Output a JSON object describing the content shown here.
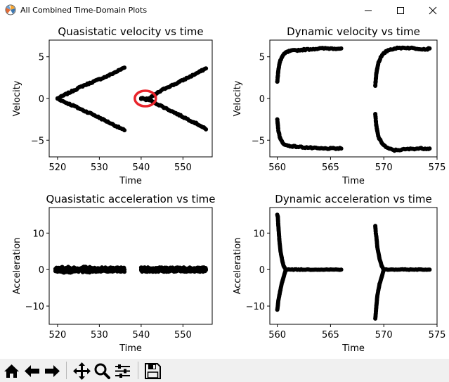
{
  "window": {
    "title": "All Combined Time-Domain Plots",
    "icon": "matplotlib-icon",
    "controls": [
      "minimize-icon",
      "maximize-icon",
      "close-icon"
    ]
  },
  "toolbar": {
    "buttons": [
      "home-icon",
      "back-icon",
      "forward-icon",
      "pan-icon",
      "zoom-icon",
      "configure-subplots-icon",
      "save-icon"
    ]
  },
  "colors": {
    "points": "#000000",
    "highlight_circle": "#e8232a",
    "toolbar_bg": "#f0f0f0"
  },
  "chart_data": [
    {
      "type": "scatter",
      "title": "Quasistatic velocity vs time",
      "xlabel": "Time",
      "ylabel": "Velocity",
      "xlim": [
        518,
        557
      ],
      "ylim": [
        -7,
        7
      ],
      "xticks": [
        520,
        530,
        540,
        550
      ],
      "yticks": [
        5,
        0,
        -5
      ],
      "annotation": "red circle around point (541, 0)",
      "series": [
        {
          "values": [
            [
              520,
              0
            ],
            [
              522,
              0.5
            ],
            [
              524,
              1.0
            ],
            [
              526,
              1.5
            ],
            [
              528,
              1.9
            ],
            [
              530,
              2.3
            ],
            [
              532,
              2.7
            ],
            [
              534,
              3.2
            ],
            [
              536,
              3.7
            ]
          ]
        },
        {
          "values": [
            [
              520,
              0
            ],
            [
              522,
              -0.5
            ],
            [
              524,
              -0.9
            ],
            [
              526,
              -1.4
            ],
            [
              528,
              -1.8
            ],
            [
              530,
              -2.3
            ],
            [
              532,
              -2.8
            ],
            [
              534,
              -3.3
            ],
            [
              536,
              -3.8
            ]
          ]
        },
        {
          "values": [
            [
              540,
              0
            ],
            [
              542,
              0.0
            ],
            [
              544,
              0.7
            ],
            [
              546,
              1.3
            ],
            [
              548,
              1.7
            ],
            [
              550,
              2.2
            ],
            [
              552,
              2.7
            ],
            [
              554,
              3.2
            ],
            [
              555.5,
              3.6
            ]
          ]
        },
        {
          "values": [
            [
              540,
              0
            ],
            [
              542,
              -0.2
            ],
            [
              544,
              -0.7
            ],
            [
              546,
              -1.2
            ],
            [
              548,
              -1.7
            ],
            [
              550,
              -2.2
            ],
            [
              552,
              -2.7
            ],
            [
              554,
              -3.2
            ],
            [
              555.5,
              -3.7
            ]
          ]
        }
      ]
    },
    {
      "type": "scatter",
      "title": "Dynamic velocity vs time",
      "xlabel": "Time",
      "ylabel": "Velocity",
      "xlim": [
        559.3,
        575
      ],
      "ylim": [
        -7,
        7
      ],
      "xticks": [
        560,
        565,
        570,
        575
      ],
      "yticks": [
        5,
        0,
        -5
      ],
      "series": [
        {
          "values": [
            [
              560,
              2.0
            ],
            [
              560.05,
              2.7
            ],
            [
              560.1,
              3.4
            ],
            [
              560.2,
              4.1
            ],
            [
              560.3,
              4.6
            ],
            [
              560.5,
              5.1
            ],
            [
              560.8,
              5.5
            ],
            [
              561.2,
              5.7
            ],
            [
              562,
              5.8
            ],
            [
              563,
              5.9
            ],
            [
              564,
              6.0
            ],
            [
              565,
              6.0
            ],
            [
              566,
              6.0
            ]
          ]
        },
        {
          "values": [
            [
              560,
              -2.5
            ],
            [
              560.05,
              -3.2
            ],
            [
              560.1,
              -3.8
            ],
            [
              560.2,
              -4.4
            ],
            [
              560.3,
              -4.9
            ],
            [
              560.5,
              -5.3
            ],
            [
              560.8,
              -5.6
            ],
            [
              561.2,
              -5.7
            ],
            [
              562,
              -5.8
            ],
            [
              563,
              -5.9
            ],
            [
              564,
              -6.0
            ],
            [
              565,
              -6.0
            ],
            [
              566,
              -6.0
            ]
          ]
        },
        {
          "values": [
            [
              569.2,
              1.5
            ],
            [
              569.25,
              2.3
            ],
            [
              569.3,
              3.0
            ],
            [
              569.4,
              3.7
            ],
            [
              569.5,
              4.3
            ],
            [
              569.7,
              4.9
            ],
            [
              570,
              5.4
            ],
            [
              570.4,
              5.8
            ],
            [
              571,
              6.0
            ],
            [
              572,
              6.1
            ],
            [
              573,
              6.0
            ],
            [
              574,
              5.9
            ],
            [
              574.3,
              6.0
            ]
          ]
        },
        {
          "values": [
            [
              569.2,
              -1.8
            ],
            [
              569.25,
              -2.6
            ],
            [
              569.3,
              -3.3
            ],
            [
              569.4,
              -4.0
            ],
            [
              569.5,
              -4.6
            ],
            [
              569.7,
              -5.1
            ],
            [
              570,
              -5.6
            ],
            [
              570.4,
              -6.0
            ],
            [
              571,
              -6.2
            ],
            [
              572,
              -6.1
            ],
            [
              573,
              -6.0
            ],
            [
              574,
              -6.0
            ],
            [
              574.3,
              -6.0
            ]
          ]
        }
      ]
    },
    {
      "type": "scatter",
      "title": "Quasistatic acceleration vs time",
      "xlabel": "Time",
      "ylabel": "Acceleration",
      "xlim": [
        518,
        557
      ],
      "ylim": [
        -15,
        17
      ],
      "xticks": [
        520,
        530,
        540,
        550
      ],
      "yticks": [
        10,
        0,
        -10
      ],
      "segments": [
        [
          519.5,
          536
        ],
        [
          540,
          555.5
        ]
      ],
      "value_range": [
        -1,
        1
      ]
    },
    {
      "type": "scatter",
      "title": "Dynamic acceleration vs time",
      "xlabel": "Time",
      "ylabel": "Acceleration",
      "xlim": [
        559.3,
        575
      ],
      "ylim": [
        -15,
        17
      ],
      "xticks": [
        560,
        565,
        570,
        575
      ],
      "yticks": [
        10,
        0,
        -10
      ],
      "series": [
        {
          "values": [
            [
              560,
              15.0
            ],
            [
              560.05,
              14.5
            ],
            [
              560.1,
              12
            ],
            [
              560.15,
              10
            ],
            [
              560.2,
              8
            ],
            [
              560.25,
              6.5
            ],
            [
              560.3,
              5
            ],
            [
              560.4,
              3.5
            ],
            [
              560.5,
              2
            ],
            [
              560.6,
              1
            ],
            [
              560.8,
              0
            ],
            [
              562,
              0
            ],
            [
              564,
              0
            ],
            [
              566,
              0
            ]
          ]
        },
        {
          "values": [
            [
              560,
              -11
            ],
            [
              560.05,
              -10
            ],
            [
              560.1,
              -8.5
            ],
            [
              560.2,
              -7
            ],
            [
              560.3,
              -5.5
            ],
            [
              560.4,
              -4
            ],
            [
              560.5,
              -3
            ],
            [
              560.6,
              -2
            ],
            [
              560.7,
              -1
            ],
            [
              560.8,
              0
            ]
          ]
        },
        {
          "values": [
            [
              569.2,
              12
            ],
            [
              569.25,
              10
            ],
            [
              569.3,
              9
            ],
            [
              569.35,
              7.5
            ],
            [
              569.4,
              6
            ],
            [
              569.5,
              4.5
            ],
            [
              569.6,
              3
            ],
            [
              569.7,
              2
            ],
            [
              569.8,
              1
            ],
            [
              570,
              0
            ],
            [
              571,
              0
            ],
            [
              572,
              0
            ],
            [
              573,
              0
            ],
            [
              574.3,
              0
            ]
          ]
        },
        {
          "values": [
            [
              569.2,
              -13.5
            ],
            [
              569.25,
              -12
            ],
            [
              569.3,
              -10
            ],
            [
              569.35,
              -8.5
            ],
            [
              569.4,
              -7
            ],
            [
              569.5,
              -5.5
            ],
            [
              569.6,
              -4
            ],
            [
              569.7,
              -3
            ],
            [
              569.8,
              -2
            ],
            [
              569.9,
              -1
            ],
            [
              570,
              0
            ]
          ]
        }
      ]
    }
  ]
}
